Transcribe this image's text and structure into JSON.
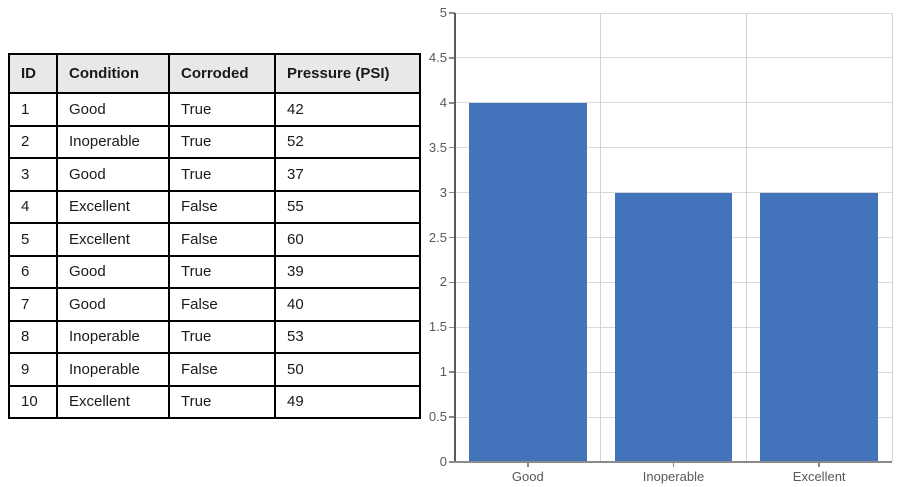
{
  "table": {
    "headers": [
      "ID",
      "Condition",
      "Corroded",
      "Pressure (PSI)"
    ],
    "rows": [
      [
        "1",
        "Good",
        "True",
        "42"
      ],
      [
        "2",
        "Inoperable",
        "True",
        "52"
      ],
      [
        "3",
        "Good",
        "True",
        "37"
      ],
      [
        "4",
        "Excellent",
        "False",
        "55"
      ],
      [
        "5",
        "Excellent",
        "False",
        "60"
      ],
      [
        "6",
        "Good",
        "True",
        "39"
      ],
      [
        "7",
        "Good",
        "False",
        "40"
      ],
      [
        "8",
        "Inoperable",
        "True",
        "53"
      ],
      [
        "9",
        "Inoperable",
        "False",
        "50"
      ],
      [
        "10",
        "Excellent",
        "True",
        "49"
      ]
    ],
    "header_bg": "#E8E8E8",
    "border_color": "#000000"
  },
  "chart_data": {
    "type": "bar",
    "title": "",
    "xlabel": "",
    "ylabel": "",
    "categories": [
      "Good",
      "Inoperable",
      "Excellent"
    ],
    "values": [
      4,
      3,
      3
    ],
    "ylim": [
      0,
      5
    ],
    "ytick_step": 0.5,
    "ytick_labels": [
      "0",
      "0.5",
      "1",
      "1.5",
      "2",
      "2.5",
      "3",
      "3.5",
      "4",
      "4.5",
      "5"
    ],
    "grid": true,
    "legend_position": "none",
    "bar_color": "#4273BB",
    "gridline_color": "#D9D9D9",
    "axis_color": "#8a8a8a",
    "tick_label_color": "#595959"
  }
}
